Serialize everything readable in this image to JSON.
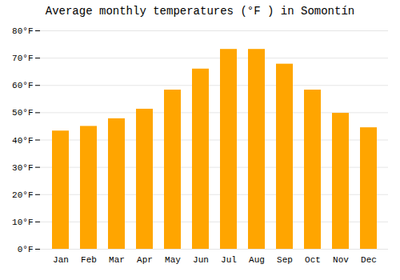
{
  "chart_data": {
    "type": "bar",
    "title": "Average monthly temperatures (°F ) in Somontín",
    "categories": [
      "Jan",
      "Feb",
      "Mar",
      "Apr",
      "May",
      "Jun",
      "Jul",
      "Aug",
      "Sep",
      "Oct",
      "Nov",
      "Dec"
    ],
    "values": [
      43.3,
      45.0,
      47.8,
      51.3,
      58.3,
      66.0,
      73.2,
      73.2,
      67.8,
      58.3,
      49.8,
      44.5
    ],
    "color": "#FFA500",
    "ylim": [
      0,
      80
    ],
    "yticks": [
      {
        "value": 0,
        "label": "0°F"
      },
      {
        "value": 10,
        "label": "10°F"
      },
      {
        "value": 20,
        "label": "20°F"
      },
      {
        "value": 30,
        "label": "30°F"
      },
      {
        "value": 40,
        "label": "40°F"
      },
      {
        "value": 50,
        "label": "50°F"
      },
      {
        "value": 60,
        "label": "60°F"
      },
      {
        "value": 70,
        "label": "70°F"
      },
      {
        "value": 80,
        "label": "80°F"
      }
    ],
    "grid": true
  }
}
